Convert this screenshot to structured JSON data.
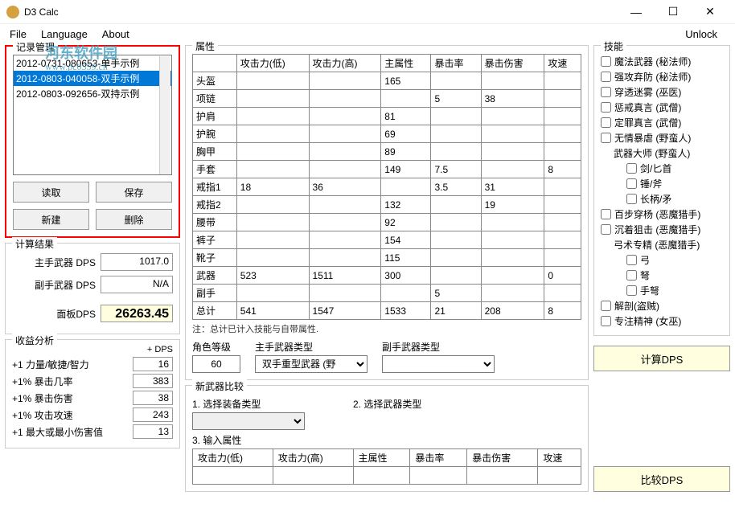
{
  "window": {
    "title": "D3 Calc"
  },
  "menu": {
    "file": "File",
    "language": "Language",
    "about": "About",
    "unlock": "Unlock"
  },
  "watermark": {
    "title": "河东软件园",
    "url": "www.pc0359.cn"
  },
  "records": {
    "title": "记录管理",
    "items": [
      "2012-0731-080653-单手示例",
      "2012-0803-040058-双手示例",
      "2012-0803-092656-双持示例"
    ],
    "selected_index": 1,
    "btn_load": "读取",
    "btn_save": "保存",
    "btn_new": "新建",
    "btn_delete": "删除"
  },
  "results": {
    "title": "计算结果",
    "main_dps_lbl": "主手武器 DPS",
    "main_dps": "1017.0",
    "off_dps_lbl": "副手武器 DPS",
    "off_dps": "N/A",
    "panel_dps_lbl": "面板DPS",
    "panel_dps": "26263.45"
  },
  "analysis": {
    "title": "收益分析",
    "hdr": "+ DPS",
    "rows": [
      {
        "lbl": "+1 力量/敏捷/智力",
        "val": "16"
      },
      {
        "lbl": "+1% 暴击几率",
        "val": "383"
      },
      {
        "lbl": "+1% 暴击伤害",
        "val": "38"
      },
      {
        "lbl": "+1% 攻击攻速",
        "val": "243"
      },
      {
        "lbl": "+1 最大或最小伤害值",
        "val": "13"
      }
    ]
  },
  "attrs": {
    "title": "属性",
    "headers": [
      "",
      "攻击力(低)",
      "攻击力(高)",
      "主属性",
      "暴击率",
      "暴击伤害",
      "攻速"
    ],
    "rows": [
      {
        "n": "头盔",
        "v": [
          "",
          "",
          "165",
          "",
          "",
          ""
        ]
      },
      {
        "n": "项链",
        "v": [
          "",
          "",
          "",
          "5",
          "38",
          ""
        ]
      },
      {
        "n": "护肩",
        "v": [
          "",
          "",
          "81",
          "",
          "",
          ""
        ]
      },
      {
        "n": "护腕",
        "v": [
          "",
          "",
          "69",
          "",
          "",
          ""
        ]
      },
      {
        "n": "胸甲",
        "v": [
          "",
          "",
          "89",
          "",
          "",
          ""
        ]
      },
      {
        "n": "手套",
        "v": [
          "",
          "",
          "149",
          "7.5",
          "",
          "8"
        ]
      },
      {
        "n": "戒指1",
        "v": [
          "18",
          "36",
          "",
          "3.5",
          "31",
          ""
        ]
      },
      {
        "n": "戒指2",
        "v": [
          "",
          "",
          "132",
          "",
          "19",
          ""
        ]
      },
      {
        "n": "腰带",
        "v": [
          "",
          "",
          "92",
          "",
          "",
          ""
        ]
      },
      {
        "n": "裤子",
        "v": [
          "",
          "",
          "154",
          "",
          "",
          ""
        ]
      },
      {
        "n": "靴子",
        "v": [
          "",
          "",
          "115",
          "",
          "",
          ""
        ]
      },
      {
        "n": "武器",
        "v": [
          "523",
          "1511",
          "300",
          "",
          "",
          "0"
        ]
      },
      {
        "n": "副手",
        "v": [
          "",
          "",
          "",
          "5",
          "",
          ""
        ]
      },
      {
        "n": "总计",
        "v": [
          "541",
          "1547",
          "1533",
          "21",
          "208",
          "8"
        ]
      }
    ],
    "note": "注：总计已计入技能与自带属性."
  },
  "role": {
    "level_lbl": "角色等级",
    "level": "60",
    "main_type_lbl": "主手武器类型",
    "main_type": "双手重型武器 (野",
    "off_type_lbl": "副手武器类型",
    "off_type": ""
  },
  "calcdps_btn": "计算DPS",
  "newweapon": {
    "title": "新武器比较",
    "sel_equip_lbl": "1. 选择装备类型",
    "sel_weap_lbl": "2. 选择武器类型",
    "input_attr_lbl": "3. 输入属性",
    "headers": [
      "攻击力(低)",
      "攻击力(高)",
      "主属性",
      "暴击率",
      "暴击伤害",
      "攻速"
    ]
  },
  "skills": {
    "title": "技能",
    "items": [
      {
        "lbl": "魔法武器 (秘法师)",
        "indent": 0
      },
      {
        "lbl": "强攻弃防 (秘法师)",
        "indent": 0
      },
      {
        "lbl": "穿透迷雾 (巫医)",
        "indent": 0
      },
      {
        "lbl": "惩戒真言 (武僧)",
        "indent": 0
      },
      {
        "lbl": "定罪真言 (武僧)",
        "indent": 0
      },
      {
        "lbl": "无情暴虐 (野蛮人)",
        "indent": 0
      },
      {
        "lbl": "武器大师 (野蛮人)",
        "indent": 1,
        "nocheck": true
      },
      {
        "lbl": "剑/匕首",
        "indent": 2
      },
      {
        "lbl": "锤/斧",
        "indent": 2
      },
      {
        "lbl": "长柄/矛",
        "indent": 2
      },
      {
        "lbl": "百步穿杨 (恶魔猎手)",
        "indent": 0
      },
      {
        "lbl": "沉着狙击 (恶魔猎手)",
        "indent": 0
      },
      {
        "lbl": "弓术专精 (恶魔猎手)",
        "indent": 1,
        "nocheck": true
      },
      {
        "lbl": "弓",
        "indent": 2
      },
      {
        "lbl": "弩",
        "indent": 2
      },
      {
        "lbl": "手弩",
        "indent": 2
      },
      {
        "lbl": "解剖(盗贼)",
        "indent": 0
      },
      {
        "lbl": "专注精神 (女巫)",
        "indent": 0
      }
    ]
  },
  "cmpdps_btn": "比较DPS"
}
